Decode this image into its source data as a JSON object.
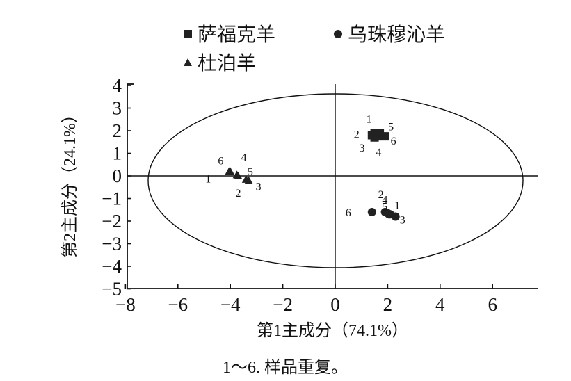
{
  "chart_data": {
    "type": "scatter",
    "xlabel": "第1主成分（74.1%）",
    "ylabel": "第2主成分（24.1%）",
    "xlim": [
      -8,
      8
    ],
    "ylim": [
      -5,
      4
    ],
    "x_ticks": [
      -8,
      -6,
      -4,
      -2,
      0,
      2,
      4,
      6
    ],
    "y_ticks": [
      -5,
      -4,
      -3,
      -2,
      -1,
      0,
      1,
      2,
      3,
      4
    ],
    "x_tick_labels": [
      "−8",
      "−6",
      "−4",
      "−2",
      "0",
      "2",
      "4",
      "6"
    ],
    "y_tick_labels": [
      "−5",
      "−4",
      "−3",
      "−2",
      "−1",
      "0",
      "1",
      "2",
      "3",
      "4"
    ],
    "grid": false,
    "legend_position": "top",
    "confidence_ellipse": {
      "center": [
        -0.2,
        -0.1
      ],
      "radii": [
        7.3,
        4.0
      ]
    },
    "series": [
      {
        "name": "萨福克羊",
        "marker": "square",
        "color": "#222222",
        "points": [
          {
            "label": "1",
            "x": 1.5,
            "y": 1.9
          },
          {
            "label": "2",
            "x": 1.4,
            "y": 1.8
          },
          {
            "label": "3",
            "x": 1.5,
            "y": 1.7
          },
          {
            "label": "4",
            "x": 1.6,
            "y": 1.75
          },
          {
            "label": "5",
            "x": 1.7,
            "y": 1.9
          },
          {
            "label": "6",
            "x": 1.9,
            "y": 1.75
          }
        ]
      },
      {
        "name": "乌珠穆沁羊",
        "marker": "circle",
        "color": "#222222",
        "points": [
          {
            "label": "1",
            "x": 2.1,
            "y": -1.7
          },
          {
            "label": "2",
            "x": 1.9,
            "y": -1.6
          },
          {
            "label": "3",
            "x": 2.3,
            "y": -1.8
          },
          {
            "label": "4",
            "x": 2.0,
            "y": -1.65
          },
          {
            "label": "5",
            "x": 2.05,
            "y": -1.7
          },
          {
            "label": "6",
            "x": 1.4,
            "y": -1.6
          }
        ]
      },
      {
        "name": "杜泊羊",
        "marker": "triangle",
        "color": "#222222",
        "points": [
          {
            "label": "1",
            "x": -4.0,
            "y": 0.2
          },
          {
            "label": "2",
            "x": -3.7,
            "y": 0.0
          },
          {
            "label": "3",
            "x": -3.3,
            "y": -0.2
          },
          {
            "label": "4",
            "x": -3.75,
            "y": 0.05
          },
          {
            "label": "5",
            "x": -3.4,
            "y": -0.15
          },
          {
            "label": "6",
            "x": -4.05,
            "y": 0.2
          }
        ]
      }
    ]
  },
  "caption": "1～6. 样品重复。"
}
